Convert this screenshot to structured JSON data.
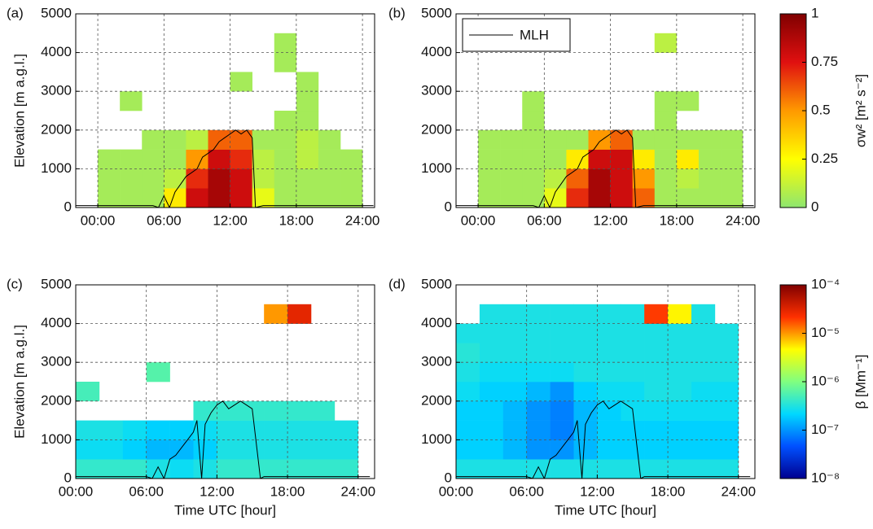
{
  "chart_data": [
    {
      "type": "heatmap",
      "panel": "(a)",
      "ylabel": "Elevation [m a.g.l.]",
      "xlim": [
        -2,
        25.1
      ],
      "xticks": [
        {
          "value": 0,
          "label": "00:00"
        },
        {
          "value": 6,
          "label": "06:00"
        },
        {
          "value": 12,
          "label": "12:00"
        },
        {
          "value": 18,
          "label": "18:00"
        },
        {
          "value": 24,
          "label": "24:00"
        }
      ],
      "ylim": [
        0,
        5000
      ],
      "yticks": [
        0,
        1000,
        2000,
        3000,
        4000,
        5000
      ],
      "grid": true,
      "x_bins": [
        0,
        2,
        4,
        6,
        8,
        10,
        12,
        14,
        16,
        18,
        20,
        22,
        24
      ],
      "y_bins": [
        0,
        500,
        1000,
        1500,
        2000,
        2500,
        3000,
        3500,
        4000,
        4500,
        5000
      ],
      "z": [
        [
          0.05,
          0.05,
          0.05,
          0.3,
          0.8,
          0.9,
          0.8,
          0.2,
          0.05,
          0.05,
          0.05,
          0.05
        ],
        [
          0.05,
          0.05,
          0.05,
          0.1,
          0.7,
          0.9,
          0.8,
          0.1,
          0.05,
          0.05,
          0.05,
          0.05
        ],
        [
          0.05,
          0.05,
          0.05,
          0.05,
          0.5,
          0.8,
          0.7,
          0.1,
          0.05,
          0.1,
          0.05,
          0.05
        ],
        [
          null,
          null,
          0.05,
          0.05,
          0.1,
          0.6,
          0.6,
          0.05,
          0.05,
          0.1,
          0.05,
          null
        ],
        [
          null,
          null,
          null,
          null,
          null,
          null,
          null,
          null,
          0.05,
          0.05,
          null,
          null
        ],
        [
          null,
          0.05,
          null,
          null,
          null,
          null,
          null,
          null,
          null,
          0.05,
          null,
          null
        ],
        [
          null,
          null,
          null,
          null,
          null,
          null,
          0.05,
          null,
          null,
          0.05,
          null,
          null
        ],
        [
          null,
          null,
          null,
          null,
          null,
          null,
          null,
          null,
          0.05,
          null,
          null,
          null
        ],
        [
          null,
          null,
          null,
          null,
          null,
          null,
          null,
          null,
          0.05,
          null,
          null,
          null
        ],
        [
          null,
          null,
          null,
          null,
          null,
          null,
          null,
          null,
          null,
          null,
          null,
          null
        ]
      ],
      "mlh": {
        "x": [
          -2,
          5,
          5.5,
          6,
          6.5,
          7,
          7.5,
          8,
          8.5,
          9,
          9.5,
          10,
          10.5,
          11,
          11.5,
          12,
          12.5,
          13,
          13.5,
          14,
          14.3,
          15,
          25
        ],
        "y": [
          50,
          50,
          0,
          300,
          0,
          400,
          600,
          800,
          900,
          1000,
          1300,
          1400,
          1500,
          1700,
          1800,
          1900,
          2000,
          1900,
          2000,
          1800,
          0,
          50,
          50
        ],
        "color": "#000000"
      }
    },
    {
      "type": "heatmap",
      "panel": "(b)",
      "legend": "upper left",
      "xlim": [
        -2,
        25.1
      ],
      "xticks": [
        {
          "value": 0,
          "label": "00:00"
        },
        {
          "value": 6,
          "label": "06:00"
        },
        {
          "value": 12,
          "label": "12:00"
        },
        {
          "value": 18,
          "label": "18:00"
        },
        {
          "value": 24,
          "label": "24:00"
        }
      ],
      "ylim": [
        0,
        5000
      ],
      "yticks": [
        0,
        1000,
        2000,
        3000,
        4000,
        5000
      ],
      "grid": true,
      "x_bins": [
        0,
        2,
        4,
        6,
        8,
        10,
        12,
        14,
        16,
        18,
        20,
        22,
        24
      ],
      "y_bins": [
        0,
        500,
        1000,
        1500,
        2000,
        2500,
        3000,
        3500,
        4000,
        4500,
        5000
      ],
      "z": [
        [
          0.05,
          0.05,
          0.05,
          0.2,
          0.7,
          0.9,
          0.8,
          0.6,
          0.05,
          0.05,
          0.05,
          0.05
        ],
        [
          0.05,
          0.05,
          0.05,
          0.1,
          0.6,
          0.9,
          0.8,
          0.5,
          0.05,
          0.1,
          0.05,
          0.05
        ],
        [
          0.05,
          0.05,
          0.05,
          0.05,
          0.3,
          0.8,
          0.8,
          0.3,
          0.05,
          0.3,
          0.05,
          0.05
        ],
        [
          0.05,
          0.05,
          0.05,
          0.05,
          0.05,
          0.5,
          0.6,
          0.05,
          0.05,
          0.05,
          0.05,
          0.05
        ],
        [
          null,
          null,
          0.05,
          null,
          null,
          null,
          null,
          null,
          0.05,
          null,
          null,
          null
        ],
        [
          null,
          null,
          0.05,
          null,
          null,
          null,
          null,
          null,
          0.05,
          0.05,
          null,
          null
        ],
        [
          null,
          null,
          null,
          null,
          null,
          null,
          null,
          null,
          null,
          null,
          null,
          null
        ],
        [
          null,
          null,
          null,
          null,
          null,
          null,
          null,
          null,
          null,
          null,
          null,
          null
        ],
        [
          null,
          null,
          null,
          null,
          null,
          null,
          null,
          null,
          0.1,
          null,
          null,
          null
        ],
        [
          null,
          null,
          null,
          null,
          null,
          null,
          null,
          null,
          null,
          null,
          null,
          null
        ]
      ],
      "mlh": {
        "name": "MLH",
        "x": [
          -2,
          5,
          5.5,
          6,
          6.5,
          7,
          7.5,
          8,
          8.5,
          9,
          9.5,
          10,
          10.5,
          11,
          11.5,
          12,
          12.5,
          13,
          13.5,
          14,
          14.3,
          15,
          25
        ],
        "y": [
          50,
          50,
          0,
          300,
          0,
          400,
          600,
          800,
          900,
          1000,
          1300,
          1400,
          1500,
          1700,
          1800,
          1900,
          2000,
          1900,
          2000,
          1800,
          0,
          50,
          50
        ],
        "color": "#000000"
      },
      "colorbar": {
        "label": "σw² [m² s⁻²]",
        "lim": [
          0,
          1
        ],
        "ticks": [
          0,
          0.25,
          0.5,
          0.75,
          1
        ],
        "log": false,
        "colors": [
          "#8ee66f",
          "#ffff00",
          "#ff9900",
          "#e01010",
          "#800000"
        ]
      }
    },
    {
      "type": "heatmap",
      "panel": "(c)",
      "ylabel": "Elevation [m a.g.l.]",
      "xlabel": "Time UTC [hour]",
      "xlim": [
        0,
        25.4
      ],
      "xticks": [
        {
          "value": 0,
          "label": "00:00"
        },
        {
          "value": 6,
          "label": "06:00"
        },
        {
          "value": 12,
          "label": "12:00"
        },
        {
          "value": 18,
          "label": "18:00"
        },
        {
          "value": 24,
          "label": "24:00"
        }
      ],
      "ylim": [
        0,
        5000
      ],
      "yticks": [
        0,
        1000,
        2000,
        3000,
        4000,
        5000
      ],
      "grid": true,
      "x_bins": [
        0,
        2,
        4,
        6,
        8,
        10,
        12,
        14,
        16,
        18,
        20,
        22,
        24
      ],
      "y_bins": [
        0,
        500,
        1000,
        1500,
        2000,
        2500,
        3000,
        3500,
        4000,
        4500,
        5000
      ],
      "z": [
        [
          4e-07,
          4e-07,
          4e-07,
          3e-07,
          2.5e-07,
          3e-07,
          4e-07,
          4e-07,
          4e-07,
          4e-07,
          4e-07,
          4e-07
        ],
        [
          2.5e-07,
          2.5e-07,
          2e-07,
          1.5e-07,
          1.5e-07,
          2e-07,
          3e-07,
          3e-07,
          3e-07,
          3e-07,
          3e-07,
          3e-07
        ],
        [
          3e-07,
          3e-07,
          2.5e-07,
          2e-07,
          2e-07,
          2.5e-07,
          3e-07,
          3e-07,
          3e-07,
          3e-07,
          3e-07,
          3e-07
        ],
        [
          null,
          null,
          null,
          null,
          null,
          4e-07,
          4e-07,
          4e-07,
          4e-07,
          4e-07,
          4e-07,
          null
        ],
        [
          5e-07,
          null,
          null,
          null,
          null,
          null,
          null,
          null,
          null,
          null,
          null,
          null
        ],
        [
          null,
          null,
          null,
          6e-07,
          null,
          null,
          null,
          null,
          null,
          null,
          null,
          null
        ],
        [
          null,
          null,
          null,
          null,
          null,
          null,
          null,
          null,
          null,
          null,
          null,
          null
        ],
        [
          null,
          null,
          null,
          null,
          null,
          null,
          null,
          null,
          null,
          null,
          null,
          null
        ],
        [
          null,
          null,
          null,
          null,
          null,
          null,
          null,
          null,
          1e-05,
          3e-05,
          null,
          null
        ],
        [
          null,
          null,
          null,
          null,
          null,
          null,
          null,
          null,
          null,
          null,
          null,
          null
        ]
      ],
      "mlh": {
        "x": [
          0,
          6,
          6.5,
          7,
          7.5,
          8,
          8.5,
          9,
          9.5,
          10,
          10.3,
          10.7,
          11,
          11.5,
          12,
          12.5,
          13,
          13.5,
          14,
          14.5,
          15,
          15.7,
          16,
          25
        ],
        "y": [
          50,
          50,
          0,
          300,
          0,
          500,
          600,
          800,
          1000,
          1200,
          1500,
          0,
          1400,
          1700,
          1900,
          2000,
          1800,
          1900,
          2000,
          1900,
          1800,
          0,
          50,
          50
        ],
        "color": "#000000"
      }
    },
    {
      "type": "heatmap",
      "panel": "(d)",
      "xlabel": "Time UTC [hour]",
      "xlim": [
        0,
        25.4
      ],
      "xticks": [
        {
          "value": 0,
          "label": "00:00"
        },
        {
          "value": 6,
          "label": "06:00"
        },
        {
          "value": 12,
          "label": "12:00"
        },
        {
          "value": 18,
          "label": "18:00"
        },
        {
          "value": 24,
          "label": "24:00"
        }
      ],
      "ylim": [
        0,
        5000
      ],
      "yticks": [
        0,
        1000,
        2000,
        3000,
        4000,
        5000
      ],
      "grid": true,
      "x_bins": [
        0,
        2,
        4,
        6,
        8,
        10,
        12,
        14,
        16,
        18,
        20,
        22,
        24
      ],
      "y_bins": [
        0,
        500,
        1000,
        1500,
        2000,
        2500,
        3000,
        3500,
        4000,
        4500,
        5000
      ],
      "z": [
        [
          3e-07,
          3e-07,
          3e-07,
          3e-07,
          3e-07,
          3e-07,
          3e-07,
          3e-07,
          3e-07,
          3e-07,
          3e-07,
          3e-07
        ],
        [
          2e-07,
          2e-07,
          1.5e-07,
          1e-07,
          1e-07,
          1.5e-07,
          2e-07,
          2e-07,
          2e-07,
          2e-07,
          2e-07,
          2e-07
        ],
        [
          2e-07,
          2e-07,
          1.5e-07,
          1e-07,
          8e-08,
          1.5e-07,
          2e-07,
          2e-07,
          2e-07,
          2e-07,
          2e-07,
          2e-07
        ],
        [
          2e-07,
          2e-07,
          1.5e-07,
          1e-07,
          8e-08,
          1.5e-07,
          2e-07,
          2.5e-07,
          2.5e-07,
          2.5e-07,
          2.5e-07,
          2.5e-07
        ],
        [
          2.5e-07,
          2e-07,
          2e-07,
          1.5e-07,
          1e-07,
          2e-07,
          2.5e-07,
          2.5e-07,
          3e-07,
          3e-07,
          2.5e-07,
          2.5e-07
        ],
        [
          3e-07,
          2.5e-07,
          2.5e-07,
          2.5e-07,
          2.5e-07,
          3e-07,
          3e-07,
          3e-07,
          3e-07,
          3e-07,
          3e-07,
          3e-07
        ],
        [
          3.5e-07,
          3e-07,
          3e-07,
          3e-07,
          3e-07,
          3e-07,
          3e-07,
          3e-07,
          3e-07,
          3e-07,
          3e-07,
          3e-07
        ],
        [
          3e-07,
          3e-07,
          3e-07,
          3e-07,
          3e-07,
          3e-07,
          3e-07,
          3e-07,
          3e-07,
          3e-07,
          3e-07,
          3e-07
        ],
        [
          null,
          3e-07,
          3e-07,
          3e-07,
          3e-07,
          3e-07,
          3e-07,
          3e-07,
          2e-05,
          5e-06,
          3e-07,
          null
        ],
        [
          null,
          null,
          null,
          null,
          null,
          null,
          null,
          null,
          null,
          null,
          null,
          null
        ]
      ],
      "mlh": {
        "x": [
          0,
          6,
          6.5,
          7,
          7.5,
          8,
          8.5,
          9,
          9.5,
          10,
          10.3,
          10.7,
          11,
          11.5,
          12,
          12.5,
          13,
          13.5,
          14,
          14.5,
          15,
          15.7,
          16,
          25
        ],
        "y": [
          50,
          50,
          0,
          300,
          0,
          500,
          600,
          800,
          1000,
          1200,
          1500,
          0,
          1400,
          1700,
          1900,
          2000,
          1800,
          1900,
          2000,
          1900,
          1800,
          0,
          50,
          50
        ],
        "color": "#000000"
      },
      "colorbar": {
        "label": "β [Mm⁻¹]",
        "lim": [
          1e-08,
          0.0001
        ],
        "log": true,
        "ticks": [
          {
            "value": 1e-08,
            "label": "10⁻⁸"
          },
          {
            "value": 1e-07,
            "label": "10⁻⁷"
          },
          {
            "value": 1e-06,
            "label": "10⁻⁶"
          },
          {
            "value": 1e-05,
            "label": "10⁻⁵"
          },
          {
            "value": 0.0001,
            "label": "10⁻⁴"
          }
        ],
        "colors": [
          "#00008f",
          "#0050ff",
          "#00d8ff",
          "#80ff80",
          "#ffff00",
          "#ff3000",
          "#800000"
        ]
      }
    }
  ]
}
